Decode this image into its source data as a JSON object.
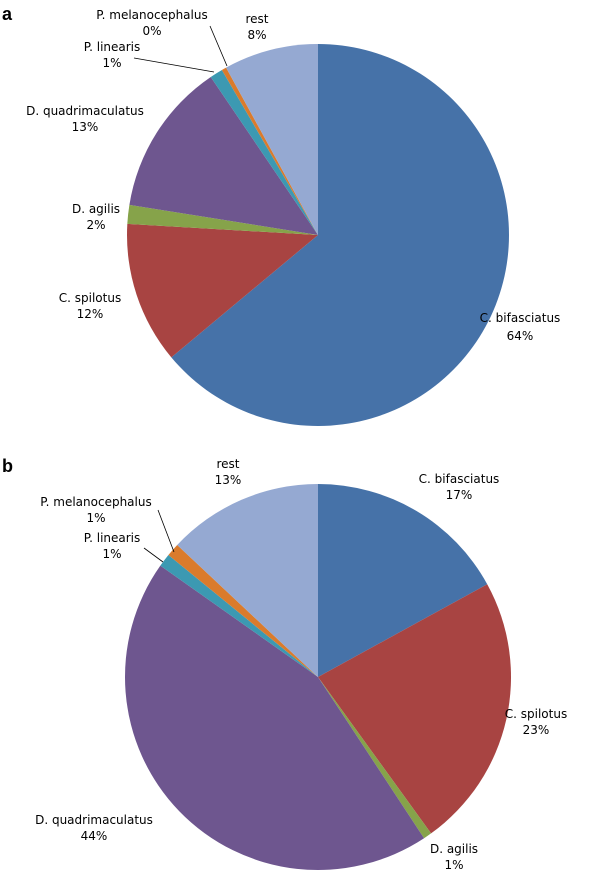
{
  "chart_data": [
    {
      "type": "pie",
      "panel_label": "a",
      "slices": [
        {
          "name": "C. bifasciatus",
          "value": 64,
          "label": "64%",
          "color": "#4672A8"
        },
        {
          "name": "C. spilotus",
          "value": 12,
          "label": "12%",
          "color": "#A84442"
        },
        {
          "name": "D. agilis",
          "value": 1.6,
          "label": "2%",
          "color": "#86A34A"
        },
        {
          "name": "D. quadrimaculatus",
          "value": 13,
          "label": "13%",
          "color": "#6E568F"
        },
        {
          "name": "P. linearis",
          "value": 1.1,
          "label": "1%",
          "color": "#3C99B2"
        },
        {
          "name": "P. melanocephalus",
          "value": 0.4,
          "label": "0%",
          "color": "#DA7B2C"
        },
        {
          "name": "rest",
          "value": 8,
          "label": "8%",
          "color": "#95A9D2"
        }
      ]
    },
    {
      "type": "pie",
      "panel_label": "b",
      "slices": [
        {
          "name": "C. bifasciatus",
          "value": 17,
          "label": "17%",
          "color": "#4672A8"
        },
        {
          "name": "C. spilotus",
          "value": 23,
          "label": "23%",
          "color": "#A84442"
        },
        {
          "name": "D. agilis",
          "value": 0.7,
          "label": "1%",
          "color": "#86A34A"
        },
        {
          "name": "D. quadrimaculatus",
          "value": 44,
          "label": "44%",
          "color": "#6E568F"
        },
        {
          "name": "P. linearis",
          "value": 1.1,
          "label": "1%",
          "color": "#3C99B2"
        },
        {
          "name": "P. melanocephalus",
          "value": 1.1,
          "label": "1%",
          "color": "#DA7B2C"
        },
        {
          "name": "rest",
          "value": 13,
          "label": "13%",
          "color": "#95A9D2"
        }
      ]
    }
  ]
}
